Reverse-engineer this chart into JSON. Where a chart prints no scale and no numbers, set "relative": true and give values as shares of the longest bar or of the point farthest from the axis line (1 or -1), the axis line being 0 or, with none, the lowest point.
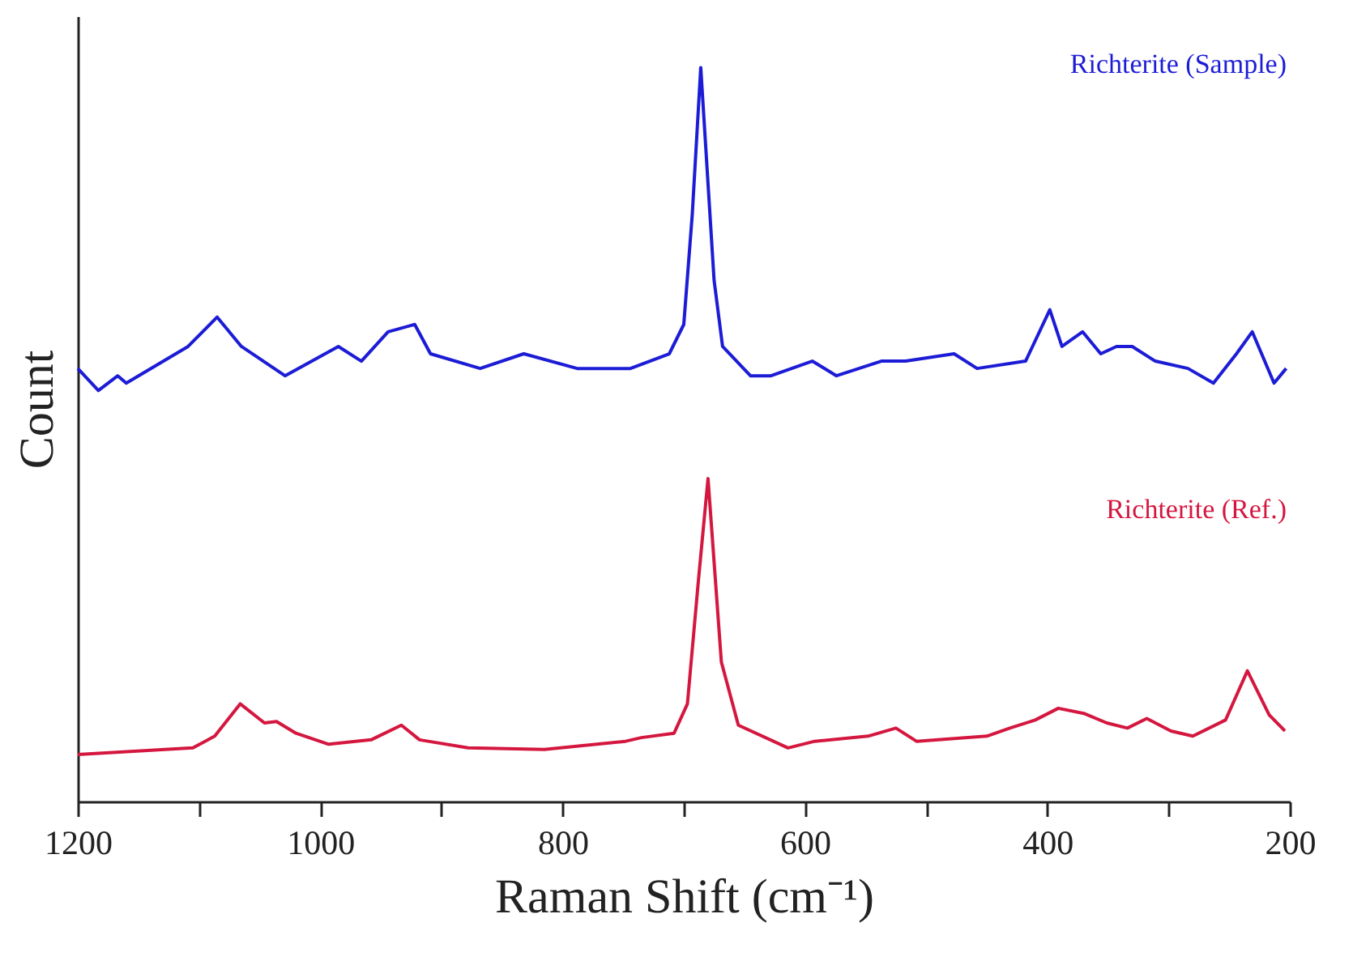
{
  "chart_data": {
    "type": "line",
    "relative": true,
    "xlabel": "Raman Shift (cm⁻¹)",
    "ylabel": "Count",
    "xlim": [
      1200,
      200
    ],
    "xticks": [
      1200,
      {
        "value": 1100,
        "label": null
      },
      1000,
      {
        "value": 900,
        "label": null
      },
      800,
      {
        "value": 700,
        "label": null
      },
      600,
      {
        "value": 500,
        "label": null
      },
      400,
      {
        "value": 300,
        "label": null
      },
      200
    ],
    "grid": false,
    "legend": false,
    "marker": "none",
    "line_style": "solid",
    "series": [
      {
        "name": "Richterite (Sample)",
        "color": "#1c1cd6",
        "x": [
          1200,
          1183,
          1167,
          1160,
          1109,
          1085,
          1065,
          1029,
          985,
          966,
          944,
          922,
          909,
          868,
          832,
          788,
          744,
          712,
          700,
          693,
          686,
          675,
          668,
          645,
          628,
          594,
          574,
          537,
          517,
          477,
          458,
          418,
          398,
          388,
          371,
          356,
          343,
          330,
          311,
          284,
          263,
          244,
          231,
          213,
          203
        ],
        "values": [
          0.59,
          0.56,
          0.58,
          0.57,
          0.62,
          0.66,
          0.62,
          0.58,
          0.62,
          0.6,
          0.64,
          0.65,
          0.61,
          0.59,
          0.61,
          0.59,
          0.59,
          0.61,
          0.65,
          0.8,
          1.0,
          0.71,
          0.62,
          0.58,
          0.58,
          0.6,
          0.58,
          0.6,
          0.6,
          0.61,
          0.59,
          0.6,
          0.67,
          0.62,
          0.64,
          0.61,
          0.62,
          0.62,
          0.6,
          0.59,
          0.57,
          0.61,
          0.64,
          0.57,
          0.59
        ]
      },
      {
        "name": "Richterite (Ref.)",
        "color": "#d4173f",
        "x": [
          1200,
          1105,
          1087,
          1066,
          1046,
          1036,
          1020,
          993,
          958,
          933,
          918,
          878,
          815,
          748,
          735,
          708,
          697,
          688,
          680,
          669,
          655,
          614,
          592,
          548,
          525,
          508,
          450,
          431,
          410,
          391,
          370,
          351,
          334,
          318,
          298,
          280,
          253,
          235,
          217,
          204
        ],
        "values": [
          0.064,
          0.073,
          0.089,
          0.133,
          0.107,
          0.109,
          0.093,
          0.078,
          0.084,
          0.104,
          0.084,
          0.073,
          0.071,
          0.082,
          0.087,
          0.093,
          0.133,
          0.3,
          0.44,
          0.19,
          0.104,
          0.073,
          0.082,
          0.089,
          0.1,
          0.082,
          0.089,
          0.1,
          0.111,
          0.127,
          0.12,
          0.107,
          0.1,
          0.113,
          0.096,
          0.089,
          0.111,
          0.178,
          0.118,
          0.096
        ]
      }
    ]
  }
}
